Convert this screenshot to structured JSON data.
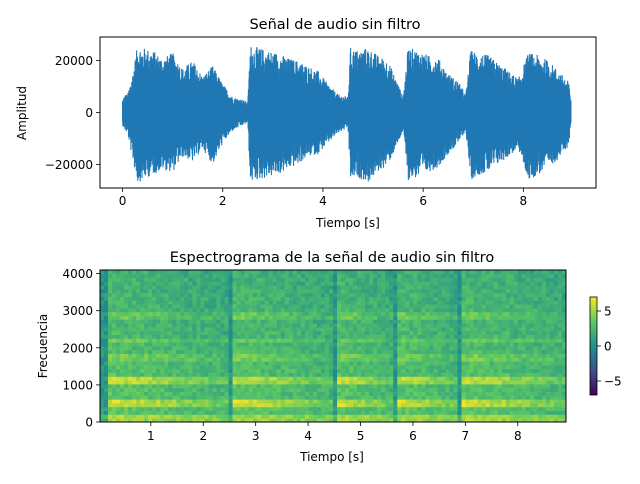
{
  "chart_data": [
    {
      "type": "line",
      "title": "Señal de audio sin filtro",
      "xlabel": "Tiempo [s]",
      "ylabel": "Amplitud",
      "xlim": [
        -0.45,
        9.45
      ],
      "ylim": [
        -29000,
        29000
      ],
      "xticks": [
        0,
        2,
        4,
        6,
        8
      ],
      "yticks": [
        -20000,
        0,
        20000
      ],
      "ytick_labels": [
        "−20000",
        "0",
        "20000"
      ],
      "series_color": "#1f77b4",
      "envelope": {
        "t": [
          0.0,
          0.05,
          0.1,
          0.2,
          0.3,
          0.4,
          0.6,
          0.8,
          1.0,
          1.2,
          1.4,
          1.6,
          1.8,
          2.0,
          2.2,
          2.4,
          2.5,
          2.55,
          2.7,
          2.9,
          3.1,
          3.3,
          3.5,
          3.7,
          3.9,
          4.1,
          4.3,
          4.5,
          4.55,
          4.7,
          4.9,
          5.1,
          5.3,
          5.5,
          5.6,
          5.7,
          5.9,
          6.1,
          6.3,
          6.5,
          6.7,
          6.85,
          6.95,
          7.1,
          7.3,
          7.5,
          7.7,
          7.9,
          8.1,
          8.3,
          8.5,
          8.7,
          8.9,
          8.95
        ],
        "max": [
          5000,
          7000,
          7000,
          15000,
          26000,
          25000,
          24000,
          21000,
          23000,
          17000,
          20000,
          14000,
          18000,
          11000,
          6000,
          5000,
          4000,
          26000,
          25000,
          24000,
          23000,
          21000,
          20000,
          18000,
          16000,
          11000,
          7000,
          6000,
          25000,
          24000,
          25000,
          22000,
          20000,
          11000,
          6000,
          25000,
          24000,
          22000,
          21000,
          15000,
          12000,
          7000,
          24000,
          23000,
          22000,
          19000,
          16000,
          13000,
          23000,
          22000,
          20000,
          16000,
          12000,
          6000
        ],
        "min": [
          -5000,
          -7000,
          -8000,
          -18000,
          -27000,
          -26000,
          -24000,
          -22000,
          -23000,
          -17000,
          -19000,
          -14000,
          -20000,
          -12000,
          -7000,
          -5000,
          -4000,
          -27000,
          -26000,
          -25000,
          -24000,
          -22000,
          -20000,
          -17000,
          -16000,
          -12000,
          -8000,
          -6000,
          -26000,
          -25000,
          -27000,
          -23000,
          -20000,
          -12000,
          -7000,
          -26000,
          -25000,
          -23000,
          -21000,
          -16000,
          -12000,
          -7000,
          -26000,
          -24000,
          -23000,
          -20000,
          -17000,
          -14000,
          -26000,
          -24000,
          -21000,
          -18000,
          -13000,
          -6000
        ]
      }
    },
    {
      "type": "heatmap",
      "title": "Espectrograma de la señal de audio sin filtro",
      "xlabel": "Tiempo [s]",
      "ylabel": "Frecuencia",
      "xlim": [
        0.03,
        8.92
      ],
      "ylim": [
        0,
        4096
      ],
      "xticks": [
        1,
        2,
        3,
        4,
        5,
        6,
        7,
        8
      ],
      "yticks": [
        0,
        1000,
        2000,
        3000,
        4000
      ],
      "colormap": "viridis",
      "colorbar": {
        "vmin": -7,
        "vmax": 7,
        "ticks": [
          -5,
          0,
          5
        ],
        "tick_labels": [
          "−5",
          "0",
          "5"
        ]
      },
      "speech_segments_s": [
        [
          0.2,
          2.5
        ],
        [
          2.55,
          4.5
        ],
        [
          4.55,
          5.6
        ],
        [
          5.7,
          6.85
        ],
        [
          6.95,
          8.92
        ]
      ],
      "formant_bands_hz": [
        [
          380,
          650
        ],
        [
          1000,
          1200
        ],
        [
          1600,
          1800
        ],
        [
          2100,
          2300
        ],
        [
          2800,
          3000
        ]
      ]
    }
  ]
}
